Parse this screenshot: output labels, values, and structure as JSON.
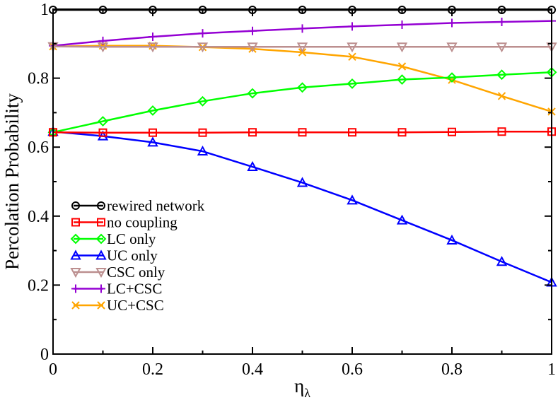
{
  "chart_data": {
    "type": "line",
    "title": "",
    "xlabel": "η",
    "xlabel_subscript": "λ",
    "ylabel": "Percolation Probability",
    "xlim": [
      0,
      1
    ],
    "ylim": [
      0,
      1
    ],
    "x_ticks": [
      0,
      0.2,
      0.4,
      0.6,
      0.8,
      1
    ],
    "x_tick_labels": [
      "0",
      "0.2",
      "0.4",
      "0.6",
      "0.8",
      "1"
    ],
    "y_ticks": [
      0,
      0.2,
      0.4,
      0.6,
      0.8,
      1
    ],
    "y_tick_labels": [
      "0",
      "0.2",
      "0.4",
      "0.6",
      "0.8",
      "1"
    ],
    "grid": false,
    "legend_position": "left",
    "x": [
      0,
      0.1,
      0.2,
      0.3,
      0.4,
      0.5,
      0.6,
      0.7,
      0.8,
      0.9,
      1.0
    ],
    "series": [
      {
        "name": "rewired network",
        "color": "#000000",
        "marker": "circle",
        "values": [
          0.998,
          0.998,
          0.998,
          0.998,
          0.998,
          0.998,
          0.998,
          0.998,
          0.998,
          0.998,
          0.998
        ]
      },
      {
        "name": "no coupling",
        "color": "#ff0000",
        "marker": "square",
        "values": [
          0.643,
          0.642,
          0.642,
          0.642,
          0.643,
          0.643,
          0.643,
          0.643,
          0.644,
          0.645,
          0.645
        ]
      },
      {
        "name": "LC only",
        "color": "#00ff00",
        "marker": "diamond",
        "values": [
          0.643,
          0.675,
          0.706,
          0.733,
          0.756,
          0.773,
          0.784,
          0.796,
          0.802,
          0.81,
          0.817
        ]
      },
      {
        "name": "UC only",
        "color": "#0000ff",
        "marker": "triangle-up",
        "values": [
          0.645,
          0.632,
          0.614,
          0.588,
          0.543,
          0.497,
          0.446,
          0.388,
          0.33,
          0.268,
          0.208
        ]
      },
      {
        "name": "CSC only",
        "color": "#bc8f8f",
        "marker": "triangle-down",
        "values": [
          0.892,
          0.891,
          0.891,
          0.891,
          0.891,
          0.891,
          0.891,
          0.891,
          0.891,
          0.891,
          0.891
        ]
      },
      {
        "name": "LC+CSC",
        "color": "#9400d3",
        "marker": "plus",
        "values": [
          0.894,
          0.908,
          0.92,
          0.93,
          0.937,
          0.944,
          0.95,
          0.955,
          0.96,
          0.963,
          0.966
        ]
      },
      {
        "name": "UC+CSC",
        "color": "#ffa500",
        "marker": "x",
        "values": [
          0.892,
          0.894,
          0.894,
          0.89,
          0.885,
          0.875,
          0.862,
          0.834,
          0.795,
          0.748,
          0.703
        ]
      }
    ]
  }
}
